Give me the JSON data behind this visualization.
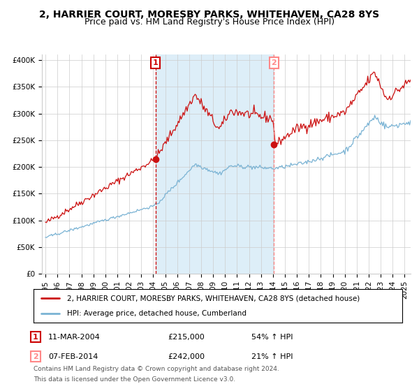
{
  "title_line1": "2, HARRIER COURT, MORESBY PARKS, WHITEHAVEN, CA28 8YS",
  "title_line2": "Price paid vs. HM Land Registry's House Price Index (HPI)",
  "ylim": [
    0,
    410000
  ],
  "xlim_start": 1994.7,
  "xlim_end": 2025.5,
  "yticks": [
    0,
    50000,
    100000,
    150000,
    200000,
    250000,
    300000,
    350000,
    400000
  ],
  "ytick_labels": [
    "£0",
    "£50K",
    "£100K",
    "£150K",
    "£200K",
    "£250K",
    "£300K",
    "£350K",
    "£400K"
  ],
  "xticks": [
    1995,
    1996,
    1997,
    1998,
    1999,
    2000,
    2001,
    2002,
    2003,
    2004,
    2005,
    2006,
    2007,
    2008,
    2009,
    2010,
    2011,
    2012,
    2013,
    2014,
    2015,
    2016,
    2017,
    2018,
    2019,
    2020,
    2021,
    2022,
    2023,
    2024,
    2025
  ],
  "purchase1_year": 2004.19,
  "purchase1_price": 215000,
  "purchase1_label": "1",
  "purchase1_date": "11-MAR-2004",
  "purchase1_pct": "54%",
  "purchase2_year": 2014.09,
  "purchase2_price": 242000,
  "purchase2_label": "2",
  "purchase2_date": "07-FEB-2014",
  "purchase2_pct": "21%",
  "hpi_color": "#7ab3d4",
  "sale_color": "#cc1111",
  "vline_color1": "#cc0000",
  "vline_color2": "#ff8888",
  "shade_color": "#ddeef8",
  "grid_color": "#cccccc",
  "bg_color": "#ffffff",
  "legend_label1": "2, HARRIER COURT, MORESBY PARKS, WHITEHAVEN, CA28 8YS (detached house)",
  "legend_label2": "HPI: Average price, detached house, Cumberland",
  "footnote_line1": "Contains HM Land Registry data © Crown copyright and database right 2024.",
  "footnote_line2": "This data is licensed under the Open Government Licence v3.0.",
  "title_fontsize": 10,
  "subtitle_fontsize": 9,
  "axis_fontsize": 7.5,
  "legend_fontsize": 8
}
